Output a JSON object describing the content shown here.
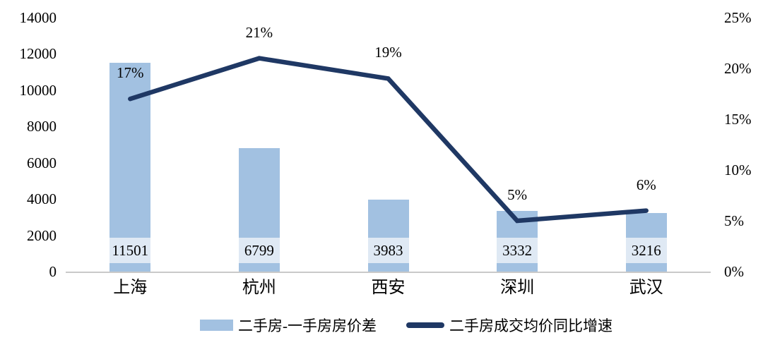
{
  "chart_data": {
    "type": "combo",
    "categories": [
      "上海",
      "杭州",
      "西安",
      "深圳",
      "武汉"
    ],
    "series": [
      {
        "name": "二手房-一手房房价差",
        "type": "bar",
        "axis": "left",
        "values": [
          11501,
          6799,
          3983,
          3332,
          3216
        ],
        "labels": [
          "11501",
          "6799",
          "3983",
          "3332",
          "3216"
        ],
        "color": "#A2C1E1"
      },
      {
        "name": "二手房成交均价同比增速",
        "type": "line",
        "axis": "right",
        "values": [
          17,
          21,
          19,
          5,
          6
        ],
        "labels": [
          "17%",
          "21%",
          "19%",
          "5%",
          "6%"
        ],
        "color": "#1F3864"
      }
    ],
    "left_axis": {
      "min": 0,
      "max": 14000,
      "ticks": [
        "0",
        "2000",
        "4000",
        "6000",
        "8000",
        "10000",
        "12000",
        "14000"
      ]
    },
    "right_axis": {
      "min": 0,
      "max": 25,
      "ticks": [
        "0%",
        "5%",
        "10%",
        "15%",
        "20%",
        "25%"
      ]
    },
    "legend": [
      {
        "label": "二手房-一手房房价差",
        "swatch": "bar"
      },
      {
        "label": "二手房成交均价同比增速",
        "swatch": "line"
      }
    ],
    "title": "",
    "grid": "off",
    "legend_position": "bottom"
  },
  "colors": {
    "bar": "#A2C1E1",
    "bar_label_band": "#DFE9F4",
    "line": "#1F3864",
    "axis_line": "#C9C9C9",
    "text": "#000000",
    "background": "#FFFFFF"
  }
}
